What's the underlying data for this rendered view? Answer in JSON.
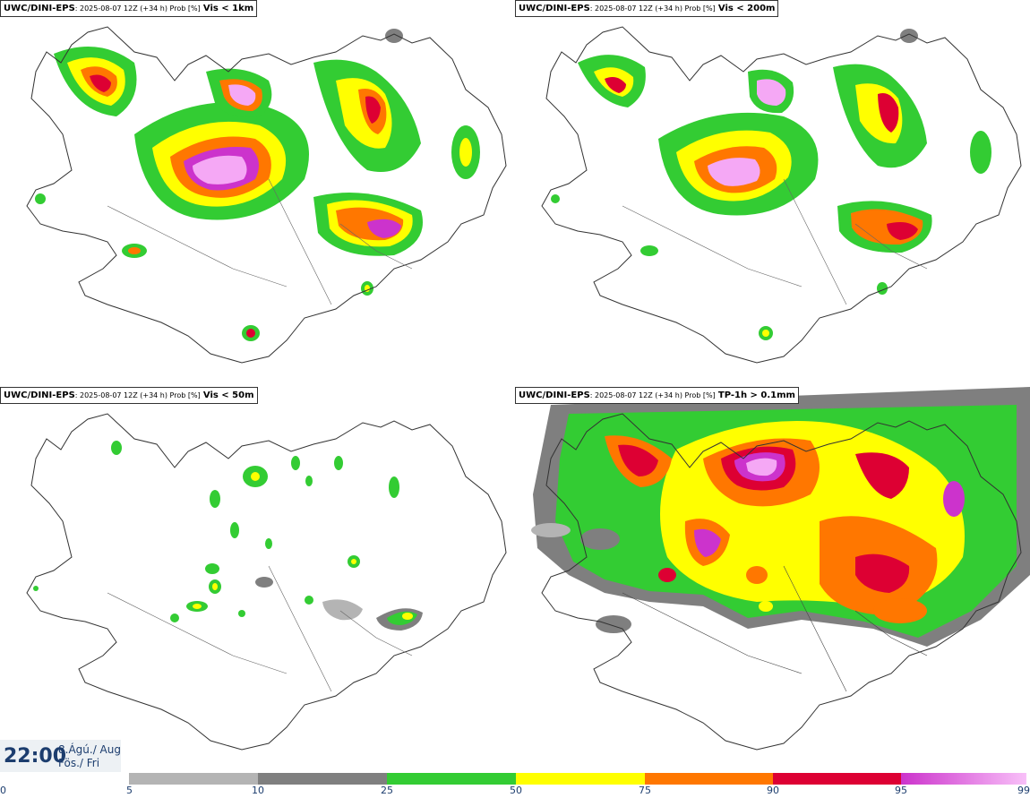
{
  "panels": [
    {
      "model": "UWC/DINI-EPS",
      "meta": ": 2025-08-07 12Z (+34 h) Prob [%]",
      "variable": "Vis < 1km"
    },
    {
      "model": "UWC/DINI-EPS",
      "meta": ": 2025-08-07 12Z (+34 h) Prob [%]",
      "variable": "Vis < 200m"
    },
    {
      "model": "UWC/DINI-EPS",
      "meta": ": 2025-08-07 12Z (+34 h) Prob [%]",
      "variable": "Vis < 50m"
    },
    {
      "model": "UWC/DINI-EPS",
      "meta": ": 2025-08-07 12Z (+34 h) Prob [%]",
      "variable": "TP-1h > 0.1mm"
    }
  ],
  "clock": {
    "time": "22:00",
    "date_line": "8.Ágú./ Aug",
    "day_line": "Fös./ Fri"
  },
  "legend": {
    "ticks": [
      "0",
      "5",
      "10",
      "25",
      "50",
      "75",
      "90",
      "95",
      "99"
    ],
    "colors": [
      "#ffffff",
      "#b4b4b4",
      "#7f7f7f",
      "#33cc33",
      "#ffff00",
      "#ff7700",
      "#dd0033",
      "#cc33cc",
      "#f5a8f5"
    ]
  }
}
